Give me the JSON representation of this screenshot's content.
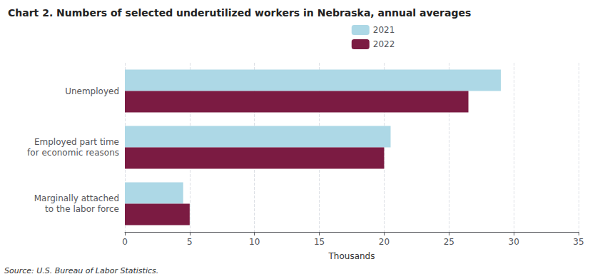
{
  "chart_data": {
    "type": "bar",
    "orientation": "horizontal",
    "title": "Chart 2. Numbers of selected underutilized workers in Nebraska, annual averages",
    "categories": [
      "Marginally attached\nto the labor force",
      "Employed part time\nfor economic reasons",
      "Unemployed"
    ],
    "series": [
      {
        "name": "2021",
        "color": "#add8e6",
        "values": [
          4.5,
          20.5,
          29
        ]
      },
      {
        "name": "2022",
        "color": "#7b1b42",
        "values": [
          5.0,
          20.0,
          26.5
        ]
      }
    ],
    "xlim": [
      0,
      35
    ],
    "xticks": [
      0,
      5,
      10,
      15,
      20,
      25,
      30,
      35
    ],
    "xlabel": "Thousands",
    "grid": true,
    "legend": "top",
    "annotations": [
      "Source: U.S. Bureau of Labor Statistics."
    ]
  }
}
